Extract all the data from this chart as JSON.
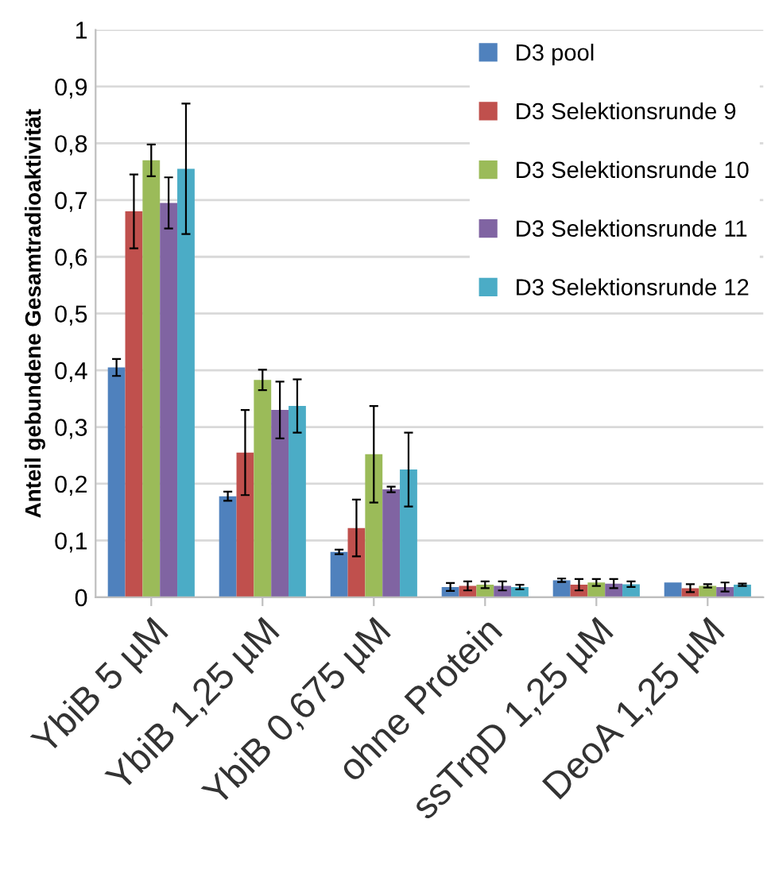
{
  "chart_data": {
    "type": "bar",
    "ylabel": "Anteil gebundene Gesamtradioaktivität",
    "categories": [
      "YbiB 5 µM",
      "YbiB 1,25 µM",
      "YbiB 0,675 µM",
      "ohne Protein",
      "ssTrpD 1,25 µM",
      "DeoA 1,25 µM"
    ],
    "series": [
      {
        "name": "D3 pool",
        "color": "#4f81bd",
        "values": [
          0.405,
          0.178,
          0.08,
          0.018,
          0.03,
          0.026
        ],
        "errors": [
          0.015,
          0.008,
          0.004,
          0.007,
          0.003,
          null
        ]
      },
      {
        "name": "D3 Selektionsrunde 9",
        "color": "#c0504d",
        "values": [
          0.68,
          0.255,
          0.122,
          0.02,
          0.022,
          0.016
        ],
        "errors": [
          0.065,
          0.075,
          0.05,
          0.008,
          0.01,
          0.007
        ]
      },
      {
        "name": "D3 Selektionsrunde 10",
        "color": "#9bbb59",
        "values": [
          0.77,
          0.383,
          0.252,
          0.022,
          0.026,
          0.02
        ],
        "errors": [
          0.028,
          0.018,
          0.085,
          0.006,
          0.006,
          0.003
        ]
      },
      {
        "name": "D3 Selektionsrunde 11",
        "color": "#8064a2",
        "values": [
          0.695,
          0.33,
          0.19,
          0.02,
          0.024,
          0.018
        ],
        "errors": [
          0.045,
          0.05,
          0.005,
          0.008,
          0.008,
          0.008
        ]
      },
      {
        "name": "D3 Selektionsrunde 12",
        "color": "#4bacc6",
        "values": [
          0.755,
          0.337,
          0.225,
          0.018,
          0.023,
          0.022
        ],
        "errors": [
          0.115,
          0.047,
          0.065,
          0.004,
          0.005,
          0.002
        ]
      }
    ],
    "ylim": [
      0,
      1
    ],
    "yticks": [
      0,
      {
        "value": 0.1,
        "label": "0,1"
      },
      {
        "value": 0.2,
        "label": "0,2"
      },
      {
        "value": 0.3,
        "label": "0,3"
      },
      {
        "value": 0.4,
        "label": "0,4"
      },
      {
        "value": 0.5,
        "label": "0,5"
      },
      {
        "value": 0.6,
        "label": "0,6"
      },
      {
        "value": 0.7,
        "label": "0,7"
      },
      {
        "value": 0.8,
        "label": "0,8"
      },
      {
        "value": 0.9,
        "label": "0,9"
      },
      1
    ],
    "grid": "y",
    "legend": "top right"
  }
}
